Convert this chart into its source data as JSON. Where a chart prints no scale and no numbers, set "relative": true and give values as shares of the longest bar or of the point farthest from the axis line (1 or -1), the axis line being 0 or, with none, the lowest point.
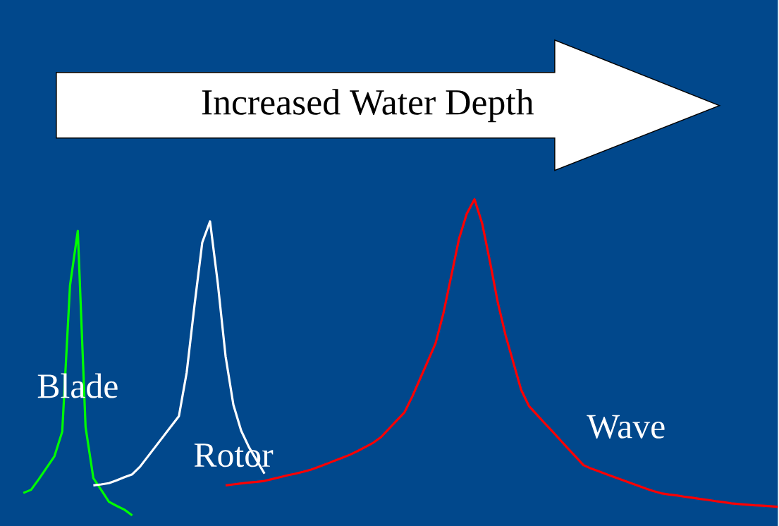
{
  "chart_data": {
    "type": "line",
    "relative": true,
    "marker": "none",
    "line_style": "solid",
    "annotations": [
      "Increased Water Depth"
    ],
    "categories": [
      null,
      null,
      null,
      null,
      null,
      null,
      null,
      null,
      null,
      null,
      null,
      null,
      null,
      null,
      null,
      null,
      null,
      null,
      null,
      null,
      null,
      null,
      null,
      null,
      null,
      null,
      null,
      null,
      null,
      null,
      null,
      null,
      null,
      null,
      null,
      null,
      null,
      null,
      null,
      null,
      null,
      null,
      null,
      null,
      null,
      null,
      null,
      null,
      null,
      null,
      null,
      null,
      null,
      null,
      null,
      null,
      null,
      null,
      null,
      null,
      null,
      null,
      null,
      null,
      null,
      null,
      null,
      null,
      null,
      null,
      null,
      null,
      null,
      null,
      null,
      null,
      null,
      null,
      null,
      null,
      null,
      null,
      null,
      null,
      null,
      null,
      null,
      null,
      null,
      null,
      null,
      null,
      null,
      null,
      null,
      null,
      null,
      null,
      null,
      null,
      null
    ],
    "series": [
      {
        "name": "Blade",
        "color": "#00ff00",
        "values": [
          null,
          null,
          null,
          0.071,
          0.081,
          0.115,
          0.151,
          0.187,
          0.265,
          0.727,
          0.9,
          0.279,
          0.118,
          0.081,
          0.043,
          0.03,
          0.018,
          0,
          null,
          null,
          null,
          null,
          null,
          null,
          null,
          null,
          null,
          null,
          null,
          null,
          null,
          null,
          null,
          null,
          null,
          null,
          null,
          null,
          null,
          null,
          null,
          null,
          null,
          null,
          null,
          null,
          null,
          null,
          null,
          null,
          null,
          null,
          null,
          null,
          null,
          null,
          null,
          null,
          null,
          null,
          null,
          null,
          null,
          null,
          null,
          null,
          null,
          null,
          null,
          null,
          null,
          null,
          null,
          null,
          null,
          null,
          null,
          null,
          null,
          null,
          null,
          null,
          null,
          null,
          null,
          null,
          null,
          null,
          null,
          null,
          null,
          null,
          null,
          null,
          null,
          null,
          null,
          null,
          null,
          null,
          null
        ]
      },
      {
        "name": "Rotor",
        "color": "#ffffff",
        "values": [
          null,
          null,
          null,
          null,
          null,
          null,
          null,
          null,
          null,
          null,
          null,
          null,
          0.095,
          0.098,
          0.102,
          0.111,
          0.121,
          0.13,
          0.154,
          0.186,
          0.218,
          0.25,
          0.282,
          0.314,
          0.452,
          0.664,
          0.863,
          0.93,
          0.734,
          0.503,
          0.35,
          0.268,
          0.216,
          0.174,
          0.132,
          null,
          null,
          null,
          null,
          null,
          null,
          null,
          null,
          null,
          null,
          null,
          null,
          null,
          null,
          null,
          null,
          null,
          null,
          null,
          null,
          null,
          null,
          null,
          null,
          null,
          null,
          null,
          null,
          null,
          null,
          null,
          null,
          null,
          null,
          null,
          null,
          null,
          null,
          null,
          null,
          null,
          null,
          null,
          null,
          null,
          null,
          null,
          null,
          null,
          null,
          null,
          null,
          null,
          null,
          null,
          null,
          null,
          null,
          null,
          null,
          null,
          null,
          null,
          null,
          null,
          null
        ]
      },
      {
        "name": "Wave",
        "color": "#ff0000",
        "values": [
          null,
          null,
          null,
          null,
          null,
          null,
          null,
          null,
          null,
          null,
          null,
          null,
          null,
          null,
          null,
          null,
          null,
          null,
          null,
          null,
          null,
          null,
          null,
          null,
          null,
          null,
          null,
          null,
          null,
          0.095,
          0.098,
          0.101,
          0.104,
          0.106,
          0.109,
          0.115,
          0.121,
          0.127,
          0.132,
          0.138,
          0.145,
          0.154,
          0.163,
          0.173,
          0.182,
          0.192,
          0.204,
          0.217,
          0.23,
          0.248,
          0.274,
          0.3,
          0.326,
          0.376,
          0.432,
          0.488,
          0.545,
          0.639,
          0.756,
          0.874,
          0.954,
          1,
          0.922,
          0.801,
          0.673,
          0.569,
          0.483,
          0.397,
          0.346,
          0.319,
          0.292,
          0.266,
          0.239,
          0.212,
          0.186,
          0.159,
          0.148,
          0.139,
          0.13,
          0.121,
          0.112,
          0.103,
          0.094,
          0.085,
          0.077,
          0.07,
          0.066,
          0.063,
          0.059,
          0.056,
          0.052,
          0.049,
          0.045,
          0.042,
          0.038,
          0.036,
          0.034,
          0.032,
          0.031,
          0.029,
          0.027
        ]
      }
    ]
  }
}
